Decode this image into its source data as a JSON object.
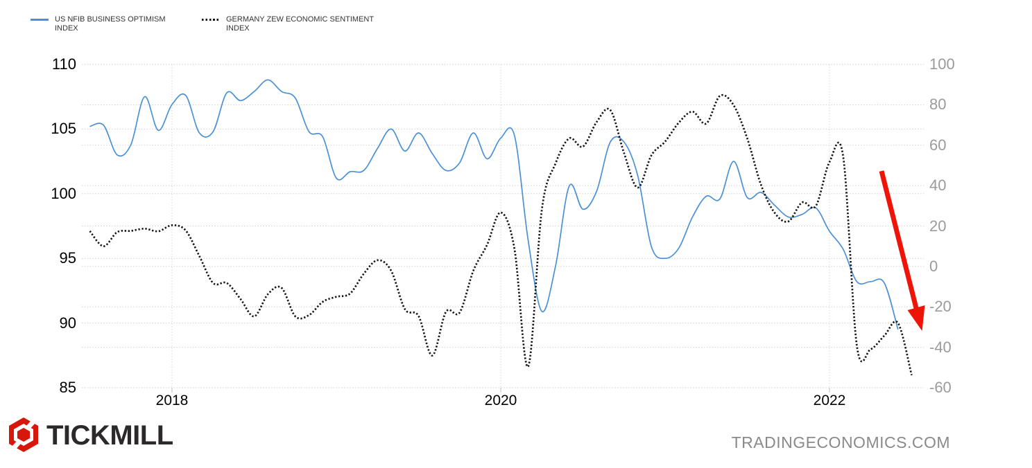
{
  "legend": {
    "items": [
      {
        "label": "US NFIB BUSINESS OPTIMISM INDEX",
        "style": "solid",
        "color": "#4a90d5"
      },
      {
        "label": "GERMANY ZEW ECONOMIC SENTIMENT INDEX",
        "style": "dotted",
        "color": "#161616"
      }
    ]
  },
  "footer": {
    "brand": "TICKMILL",
    "brand_logo_color": "#d8170c",
    "site": "TRADINGECONOMICS.COM"
  },
  "chart_data": {
    "type": "line",
    "grid": true,
    "x_tick_labels": [
      "2018",
      "2020",
      "2022"
    ],
    "left_axis": {
      "ticks": [
        110,
        105,
        100,
        95,
        90,
        85
      ],
      "min": 85,
      "max": 110
    },
    "right_axis": {
      "ticks": [
        100,
        80,
        60,
        40,
        20,
        0,
        -20,
        -40,
        -60
      ],
      "min": -60,
      "max": 100
    },
    "series": [
      {
        "name": "US NFIB Business Optimism Index",
        "axis": "left",
        "style": "solid",
        "color": "#4a90d5",
        "start": "2017-07",
        "frequency": "monthly",
        "values": [
          105.2,
          105.3,
          103.0,
          103.8,
          107.5,
          104.9,
          106.9,
          107.6,
          104.7,
          104.8,
          107.8,
          107.2,
          107.9,
          108.8,
          107.9,
          107.4,
          104.8,
          104.4,
          101.2,
          101.7,
          101.8,
          103.5,
          105.0,
          103.3,
          104.7,
          103.1,
          101.8,
          102.4,
          104.7,
          102.7,
          104.3,
          104.5,
          96.4,
          90.9,
          94.4,
          100.6,
          98.8,
          100.2,
          104.0,
          104.0,
          101.4,
          95.9,
          95.0,
          95.8,
          98.2,
          99.8,
          99.6,
          102.5,
          99.7,
          100.1,
          99.1,
          98.2,
          98.4,
          98.9,
          97.1,
          95.7,
          93.2,
          93.2,
          93.1,
          89.5
        ]
      },
      {
        "name": "Germany ZEW Economic Sentiment Index",
        "axis": "right",
        "style": "dotted",
        "color": "#161616",
        "start": "2017-07",
        "frequency": "monthly",
        "values": [
          17.5,
          10.0,
          17.0,
          17.6,
          18.7,
          17.4,
          20.4,
          17.8,
          5.1,
          -8.2,
          -8.2,
          -16.1,
          -24.7,
          -13.7,
          -10.6,
          -24.7,
          -24.1,
          -17.5,
          -15.0,
          -13.4,
          -3.6,
          3.1,
          -2.1,
          -21.1,
          -24.5,
          -44.1,
          -22.5,
          -22.8,
          -2.1,
          10.7,
          26.7,
          8.7,
          -49.5,
          28.2,
          51.0,
          63.4,
          59.3,
          71.5,
          77.4,
          56.1,
          39.0,
          55.0,
          61.8,
          71.2,
          76.6,
          70.7,
          84.4,
          79.8,
          63.3,
          40.4,
          26.5,
          22.3,
          31.7,
          29.9,
          51.7,
          54.3,
          -39.3,
          -41.0,
          -34.3,
          -28.0,
          -53.8
        ]
      }
    ],
    "annotation": {
      "type": "arrow",
      "direction": "down",
      "color": "#ee1408"
    }
  }
}
